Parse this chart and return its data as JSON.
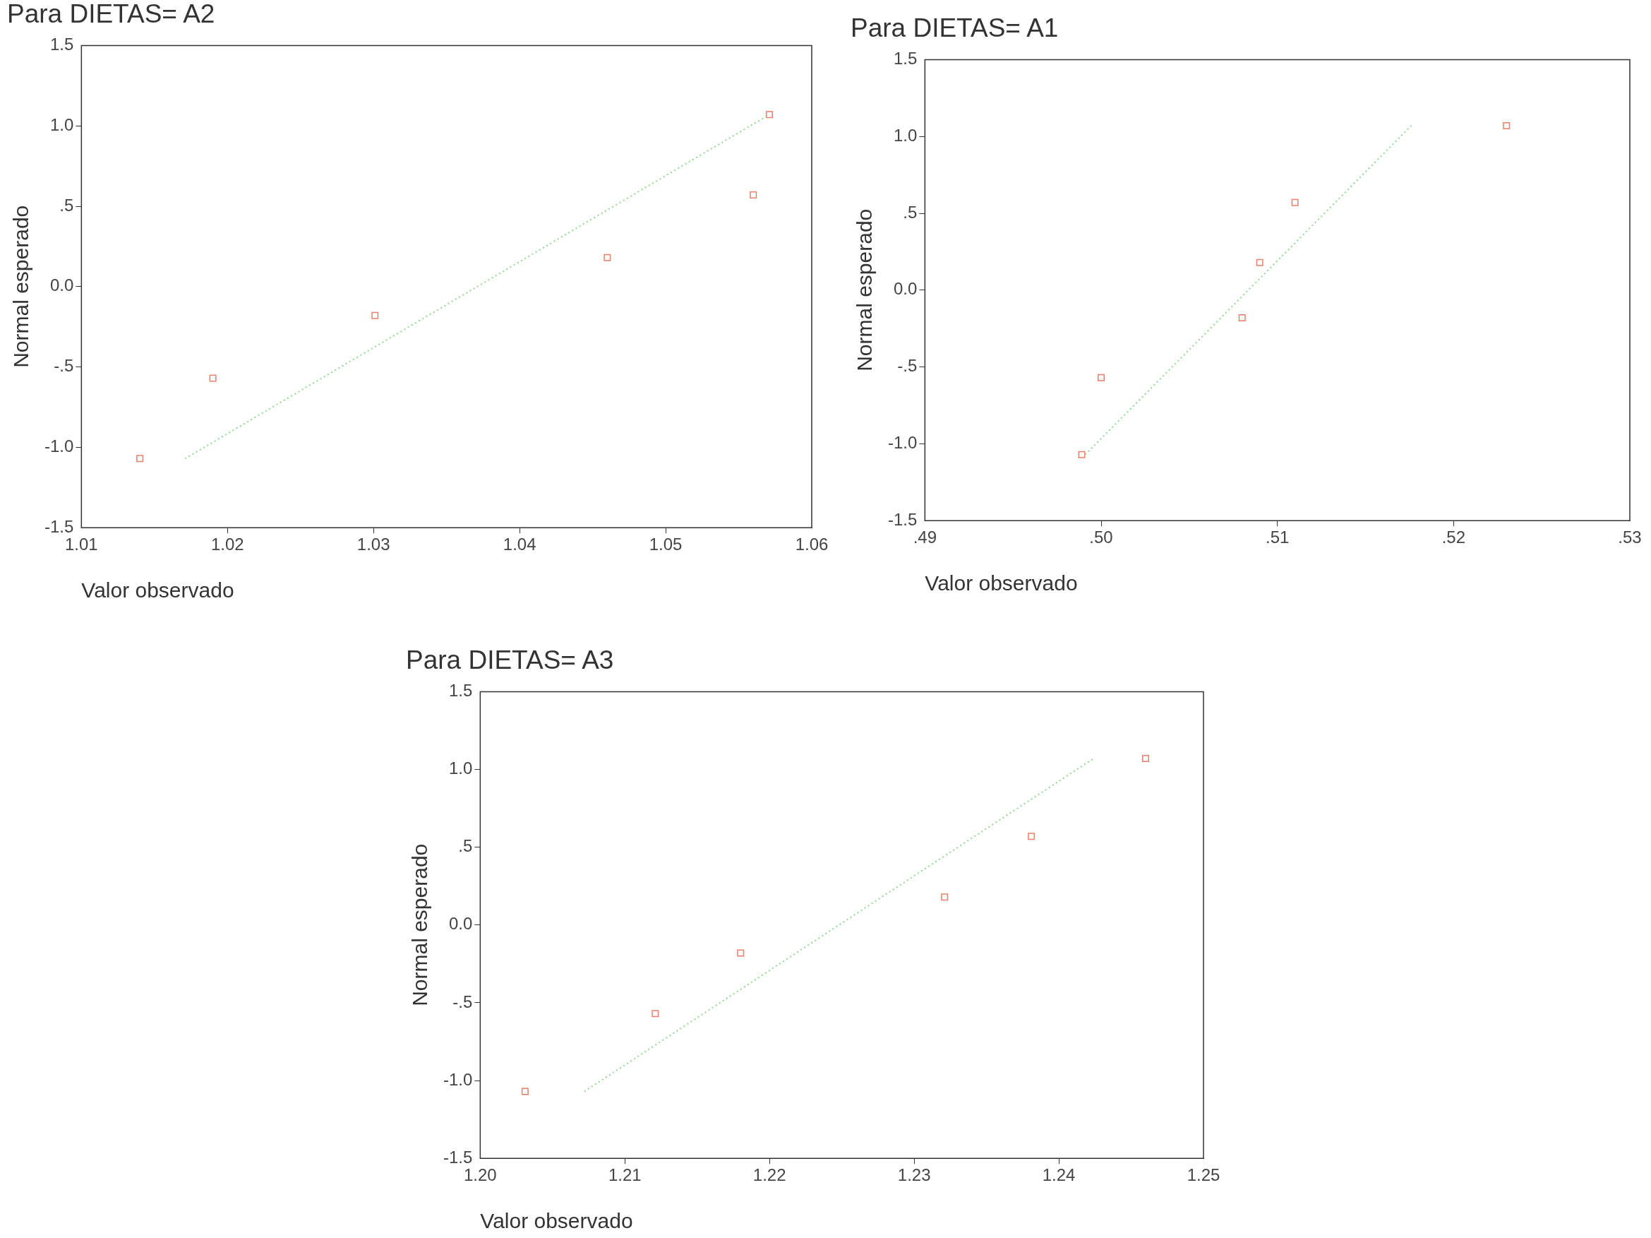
{
  "chart_data": [
    {
      "type": "scatter",
      "title": "Para DIETAS= A2",
      "xlabel": "Valor observado",
      "ylabel": "Normal esperado",
      "xlim": [
        1.01,
        1.06
      ],
      "xticks": [
        1.01,
        1.02,
        1.03,
        1.04,
        1.05,
        1.06
      ],
      "ylim": [
        -1.5,
        1.5
      ],
      "yticks": [
        {
          "value": -1.5,
          "label": "-1.5"
        },
        {
          "value": -1,
          "label": "-1.0"
        },
        {
          "value": -0.5,
          "label": "-.5"
        },
        {
          "value": 0,
          "label": "0.0"
        },
        {
          "value": 0.5,
          "label": ".5"
        },
        {
          "value": 1,
          "label": "1.0"
        },
        {
          "value": 1.5,
          "label": "1.5"
        }
      ],
      "grid": false,
      "legend": false,
      "series": [
        {
          "type": "scatter",
          "color": "#e8806a",
          "marker": "square",
          "x": [
            1.014,
            1.019,
            1.0301,
            1.046,
            1.056,
            1.0571
          ],
          "values": [
            -1.07,
            -0.57,
            -0.18,
            0.18,
            0.57,
            1.07
          ]
        },
        {
          "type": "line",
          "color": "#90d890",
          "line_style": "dotted",
          "marker": "none",
          "x": [
            1.0171,
            1.0571
          ],
          "values": [
            -1.07,
            1.07
          ]
        }
      ]
    },
    {
      "type": "scatter",
      "title": "Para DIETAS= A1",
      "xlabel": "Valor observado",
      "ylabel": "Normal esperado",
      "xlim": [
        0.49,
        0.53
      ],
      "xticks": [
        {
          "value": 0.49,
          "label": ".49"
        },
        {
          "value": 0.5,
          "label": ".50"
        },
        {
          "value": 0.51,
          "label": ".51"
        },
        {
          "value": 0.52,
          "label": ".52"
        },
        {
          "value": 0.53,
          "label": ".53"
        }
      ],
      "ylim": [
        -1.5,
        1.5
      ],
      "yticks": [
        {
          "value": -1.5,
          "label": "-1.5"
        },
        {
          "value": -1,
          "label": "-1.0"
        },
        {
          "value": -0.5,
          "label": "-.5"
        },
        {
          "value": 0,
          "label": "0.0"
        },
        {
          "value": 0.5,
          "label": ".5"
        },
        {
          "value": 1,
          "label": "1.0"
        },
        {
          "value": 1.5,
          "label": "1.5"
        }
      ],
      "grid": false,
      "legend": false,
      "series": [
        {
          "type": "scatter",
          "color": "#e8806a",
          "marker": "square",
          "x": [
            0.4989,
            0.5,
            0.508,
            0.509,
            0.511,
            0.523
          ],
          "values": [
            -1.07,
            -0.57,
            -0.18,
            0.18,
            0.57,
            1.07
          ]
        },
        {
          "type": "line",
          "color": "#90d890",
          "line_style": "dotted",
          "marker": "none",
          "x": [
            0.4991,
            0.5176
          ],
          "values": [
            -1.07,
            1.07
          ]
        }
      ]
    },
    {
      "type": "scatter",
      "title": "Para DIETAS= A3",
      "xlabel": "Valor observado",
      "ylabel": "Normal esperado",
      "xlim": [
        1.2,
        1.25
      ],
      "xticks": [
        {
          "value": 1.2,
          "label": "1.20"
        },
        1.21,
        1.22,
        1.23,
        1.24,
        1.25
      ],
      "ylim": [
        -1.5,
        1.5
      ],
      "yticks": [
        {
          "value": -1.5,
          "label": "-1.5"
        },
        {
          "value": -1,
          "label": "-1.0"
        },
        {
          "value": -0.5,
          "label": "-.5"
        },
        {
          "value": 0,
          "label": "0.0"
        },
        {
          "value": 0.5,
          "label": ".5"
        },
        {
          "value": 1,
          "label": "1.0"
        },
        {
          "value": 1.5,
          "label": "1.5"
        }
      ],
      "grid": false,
      "legend": false,
      "series": [
        {
          "type": "scatter",
          "color": "#e8806a",
          "marker": "square",
          "x": [
            1.2031,
            1.2121,
            1.218,
            1.2321,
            1.2381,
            1.246
          ],
          "values": [
            -1.07,
            -0.57,
            -0.18,
            0.18,
            0.57,
            1.07
          ]
        },
        {
          "type": "line",
          "color": "#90d890",
          "line_style": "dotted",
          "marker": "none",
          "x": [
            1.2072,
            1.2424
          ],
          "values": [
            -1.07,
            1.07
          ]
        }
      ]
    }
  ]
}
